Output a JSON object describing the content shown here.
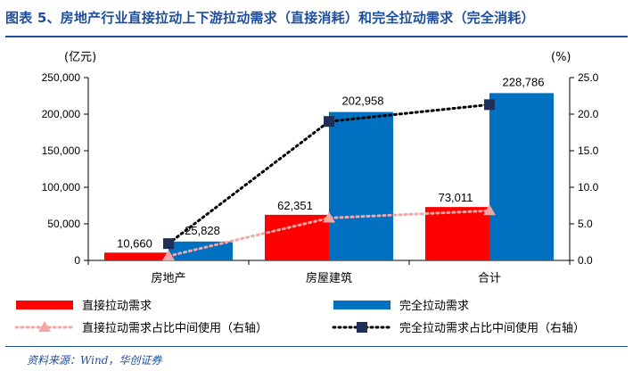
{
  "title": "图表 5、房地产行业直接拉动上下游拉动需求（直接消耗）和完全拉动需求（完全消耗）",
  "source": "资料来源：Wind，华创证券",
  "colors": {
    "title": "#1f4e9c",
    "direct_bar": "#ff0000",
    "total_bar": "#0070c0",
    "direct_line": "#f4a6a6",
    "total_line": "#000000",
    "total_marker": "#1f2f5a"
  },
  "chart_data": {
    "type": "bar",
    "categories": [
      "房地产",
      "房屋建筑",
      "合计"
    ],
    "series": [
      {
        "name": "直接拉动需求",
        "axis": "left",
        "kind": "bar",
        "values": [
          10660,
          62351,
          73011
        ],
        "labels": [
          "10,660",
          "62,351",
          "73,011"
        ]
      },
      {
        "name": "完全拉动需求",
        "axis": "left",
        "kind": "bar",
        "values": [
          25828,
          202958,
          228786
        ],
        "labels": [
          "25,828",
          "202,958",
          "228,786"
        ]
      },
      {
        "name": "直接拉动需求占比中间使用（右轴）",
        "axis": "right",
        "kind": "line",
        "marker": "triangle",
        "style": "dotted",
        "values": [
          0.6,
          5.8,
          6.8
        ]
      },
      {
        "name": "完全拉动需求占比中间使用（右轴）",
        "axis": "right",
        "kind": "line",
        "marker": "square",
        "style": "dotted",
        "values": [
          2.3,
          19.0,
          21.3
        ]
      }
    ],
    "left_axis": {
      "unit_label": "(亿元)",
      "ylim": [
        0,
        250000
      ],
      "ticks": [
        "0",
        "50,000",
        "100,000",
        "150,000",
        "200,000",
        "250,000"
      ]
    },
    "right_axis": {
      "unit_label": "(%)",
      "ylim": [
        0,
        25
      ],
      "ticks": [
        "0.0",
        "5.0",
        "10.0",
        "15.0",
        "20.0",
        "25.0"
      ]
    },
    "grid": false,
    "legend_position": "bottom"
  }
}
